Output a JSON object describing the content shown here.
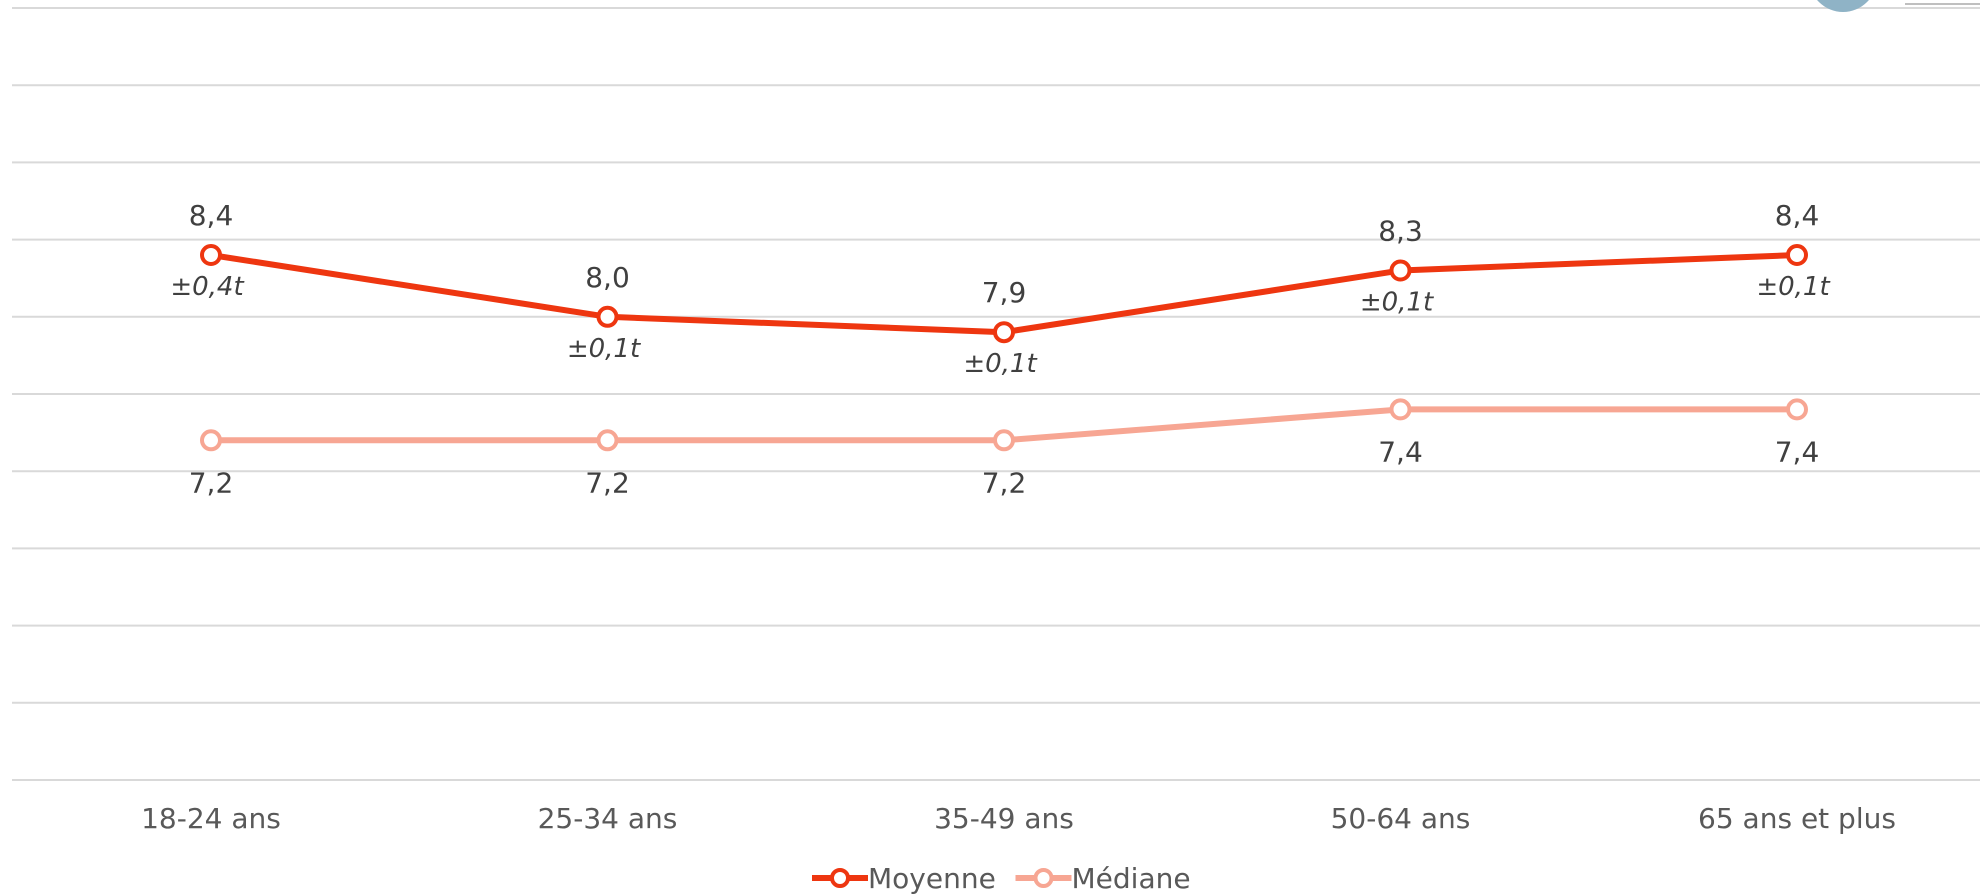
{
  "chart_data": {
    "type": "line",
    "categories": [
      "18-24 ans",
      "25-34 ans",
      "35-49 ans",
      "50-64 ans",
      "65 ans et plus"
    ],
    "ylim": [
      5,
      10
    ],
    "grid": true,
    "legend_position": "bottom",
    "series": [
      {
        "name": "Moyenne",
        "color": "#ee3610",
        "values": [
          8.4,
          8.0,
          7.9,
          8.3,
          8.4
        ],
        "labels": [
          "8,4",
          "8,0",
          "7,9",
          "8,3",
          "8,4"
        ],
        "error_labels": [
          "±0,4t",
          "±0,1t",
          "±0,1t",
          "±0,1t",
          "±0,1t"
        ]
      },
      {
        "name": "Médiane",
        "color": "#f7a693",
        "values": [
          7.2,
          7.2,
          7.2,
          7.4,
          7.4
        ],
        "labels": [
          "7,2",
          "7,2",
          "7,2",
          "7,4",
          "7,4"
        ]
      }
    ]
  }
}
